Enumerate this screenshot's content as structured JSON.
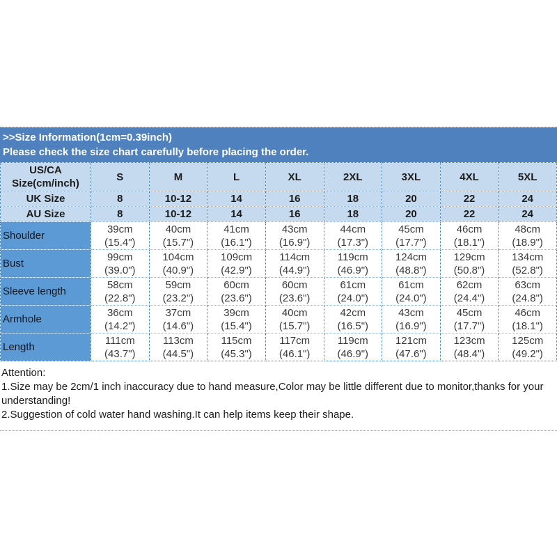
{
  "banner": {
    "line1": ">>Size Information(1cm=0.39inch)",
    "line2": "Please check the size chart carefully before placing the order."
  },
  "table": {
    "corner_header": "US/CA\nSize(cm/inch)",
    "size_headers": [
      "S",
      "M",
      "L",
      "XL",
      "2XL",
      "3XL",
      "4XL",
      "5XL"
    ],
    "uk_row": {
      "label": "UK Size",
      "values": [
        "8",
        "10-12",
        "14",
        "16",
        "18",
        "20",
        "22",
        "24"
      ]
    },
    "au_row": {
      "label": "AU Size",
      "values": [
        "8",
        "10-12",
        "14",
        "16",
        "18",
        "20",
        "22",
        "24"
      ]
    },
    "measure_rows": [
      {
        "label": "Shoulder",
        "values": [
          "39cm\n(15.4\")",
          "40cm\n(15.7\")",
          "41cm\n(16.1\")",
          "43cm\n(16.9\")",
          "44cm\n(17.3\")",
          "45cm\n(17.7\")",
          "46cm\n(18.1\")",
          "48cm\n(18.9\")"
        ]
      },
      {
        "label": "Bust",
        "values": [
          "99cm\n(39.0\")",
          "104cm\n(40.9\")",
          "109cm\n(42.9\")",
          "114cm\n(44.9\")",
          "119cm\n(46.9\")",
          "124cm\n(48.8\")",
          "129cm\n(50.8\")",
          "134cm\n(52.8\")"
        ]
      },
      {
        "label": "Sleeve length",
        "values": [
          "58cm\n(22.8\")",
          "59cm\n(23.2\")",
          "60cm\n(23.6\")",
          "60cm\n(23.6\")",
          "61cm\n(24.0\")",
          "61cm\n(24.0\")",
          "62cm\n(24.4\")",
          "63cm\n(24.8\")"
        ]
      },
      {
        "label": "Armhole",
        "values": [
          "36cm\n(14.2\")",
          "37cm\n(14.6\")",
          "39cm\n(15.4\")",
          "40cm\n(15.7\")",
          "42cm\n(16.5\")",
          "43cm\n(16.9\")",
          "45cm\n(17.7\")",
          "46cm\n(18.1\")"
        ]
      },
      {
        "label": "Length",
        "values": [
          "111cm\n(43.7\")",
          "113cm\n(44.5\")",
          "115cm\n(45.3\")",
          "117cm\n(46.1\")",
          "119cm\n(46.9\")",
          "121cm\n(47.6\")",
          "123cm\n(48.4\")",
          "125cm\n(49.2\")"
        ]
      }
    ]
  },
  "attention": {
    "title": "Attention:",
    "note1": "1.Size may be 2cm/1 inch inaccuracy due to hand measure,Color may be little different due to monitor,thanks for your understanding!",
    "note2": "2.Suggestion of cold water hand washing.It can help items keep their shape."
  },
  "colors": {
    "banner_bg": "#4e81bd",
    "header_bg": "#c5daee",
    "label_col_bg": "#5b9ad5",
    "border_dotted": "#4a7ab5",
    "banner_text": "#ffffff"
  }
}
